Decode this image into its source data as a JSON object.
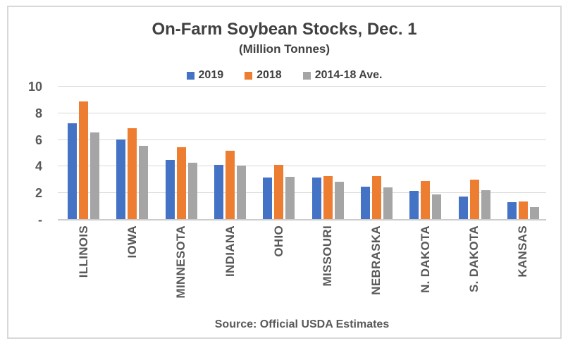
{
  "chart_data": {
    "type": "bar",
    "title": "On-Farm Soybean Stocks, Dec. 1",
    "subtitle": "(Million Tonnes)",
    "categories": [
      "ILLINOIS",
      "IOWA",
      "MINNESOTA",
      "INDIANA",
      "OHIO",
      "MISSOURI",
      "NEBRASKA",
      "N. DAKOTA",
      "S. DAKOTA",
      "KANSAS"
    ],
    "series": [
      {
        "name": "2019",
        "color": "#4472C4",
        "values": [
          7.2,
          6.0,
          4.45,
          4.1,
          3.1,
          3.1,
          2.45,
          2.1,
          1.7,
          1.25
        ]
      },
      {
        "name": "2018",
        "color": "#ED7D31",
        "values": [
          8.85,
          6.8,
          5.4,
          5.15,
          4.1,
          3.25,
          3.25,
          2.85,
          2.95,
          1.3
        ]
      },
      {
        "name": "2014-18 Ave.",
        "color": "#A5A5A5",
        "values": [
          6.5,
          5.5,
          4.25,
          4.0,
          3.2,
          2.8,
          2.4,
          1.85,
          2.15,
          0.9
        ]
      }
    ],
    "ylim": [
      0,
      10
    ],
    "yticks": [
      {
        "value": 10,
        "label": "10"
      },
      {
        "value": 8,
        "label": "8"
      },
      {
        "value": 6,
        "label": "6"
      },
      {
        "value": 4,
        "label": "4"
      },
      {
        "value": 2,
        "label": "2"
      },
      {
        "value": 0,
        "label": "-"
      }
    ],
    "grid": true,
    "legend_position": "top",
    "source": "Source: Official USDA Estimates"
  },
  "palette": {
    "title_text": "#404040",
    "axis_text": "#595959",
    "gridline": "#D9D9D9",
    "frame_border": "#D8D8D8",
    "background": "#FFFFFF"
  }
}
